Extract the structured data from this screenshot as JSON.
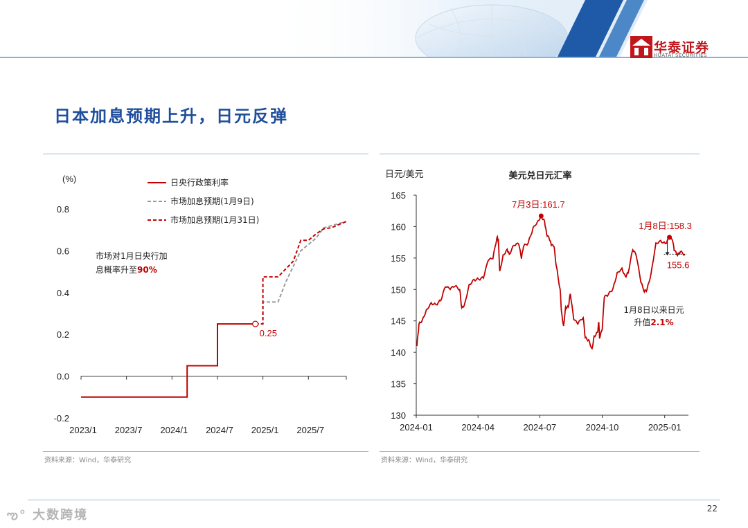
{
  "header": {
    "logo_text": "华泰证券",
    "logo_sub": "HUATAI SECURITIES",
    "colors": {
      "brand_red": "#c0171d",
      "title_blue": "#1f4e9c",
      "line_red": "#c00000",
      "line_gray": "#999999"
    }
  },
  "page": {
    "title": "日本加息预期上升，日元反弹",
    "page_number": "22",
    "watermark": "大数跨境"
  },
  "left": {
    "source": "资料来源：Wind，华泰研究",
    "annotation_text": "市场对1月日央行加息概率升至",
    "annotation_line1": "市场对1月日央行加",
    "annotation_line2": "息概率升至",
    "annotation_value": "90%",
    "end_point_label": "0.25"
  },
  "right": {
    "source": "资料来源：Wind，华泰研究",
    "annotation_text": "1月8日以来日元升值",
    "annotation_line1": "1月8日以来日元",
    "annotation_line2": "升值",
    "annotation_value": "2.1%",
    "peak1_label": "7月3日:161.7",
    "peak2_label": "1月8日:158.3",
    "last_label": "155.6"
  },
  "chart_data": [
    {
      "type": "line",
      "title": "",
      "ylabel": "(%)",
      "ylim": [
        -0.2,
        0.8
      ],
      "yticks": [
        -0.2,
        0.0,
        0.2,
        0.4,
        0.6,
        0.8
      ],
      "xtick_labels": [
        "2023/1",
        "2023/7",
        "2024/1",
        "2024/7",
        "2025/1",
        "2025/7"
      ],
      "xlim": [
        "2023-01",
        "2025-12"
      ],
      "legend_position": "top-center",
      "series": [
        {
          "name": "日央行政策利率",
          "style": "solid",
          "color": "#c00000",
          "points": [
            [
              "2023-01",
              -0.1
            ],
            [
              "2024-03",
              -0.1
            ],
            [
              "2024-03",
              0.05
            ],
            [
              "2024-07",
              0.05
            ],
            [
              "2024-07",
              0.25
            ],
            [
              "2024-12",
              0.25
            ]
          ]
        },
        {
          "name": "市场加息预期(1月9日)",
          "style": "dashed",
          "color": "#999999",
          "points": [
            [
              "2024-12",
              0.25
            ],
            [
              "2025-01",
              0.25
            ],
            [
              "2025-01",
              0.355
            ],
            [
              "2025-03",
              0.355
            ],
            [
              "2025-04",
              0.45
            ],
            [
              "2025-06",
              0.6
            ],
            [
              "2025-08",
              0.66
            ],
            [
              "2025-09",
              0.71
            ],
            [
              "2025-10",
              0.72
            ],
            [
              "2025-11",
              0.73
            ],
            [
              "2025-12",
              0.74
            ]
          ]
        },
        {
          "name": "市场加息预期(1月31日)",
          "style": "dashed",
          "color": "#c00000",
          "points": [
            [
              "2024-12",
              0.25
            ],
            [
              "2025-01",
              0.25
            ],
            [
              "2025-01",
              0.475
            ],
            [
              "2025-03",
              0.475
            ],
            [
              "2025-05",
              0.55
            ],
            [
              "2025-06",
              0.65
            ],
            [
              "2025-07",
              0.65
            ],
            [
              "2025-08",
              0.68
            ],
            [
              "2025-09",
              0.705
            ],
            [
              "2025-10",
              0.71
            ],
            [
              "2025-11",
              0.725
            ],
            [
              "2025-12",
              0.74
            ]
          ]
        }
      ]
    },
    {
      "type": "line",
      "title": "美元兑日元汇率",
      "ylabel": "日元/美元",
      "ylim": [
        130,
        165
      ],
      "yticks": [
        130,
        135,
        140,
        145,
        150,
        155,
        160,
        165
      ],
      "xtick_labels": [
        "2024-01",
        "2024-04",
        "2024-07",
        "2024-10",
        "2025-01"
      ],
      "xlim": [
        "2024-01-01",
        "2025-02-05"
      ],
      "series": [
        {
          "name": "美元兑日元",
          "color": "#c00000",
          "points": [
            [
              "2024-01-02",
              141.0
            ],
            [
              "2024-01-05",
              144.5
            ],
            [
              "2024-01-10",
              145.2
            ],
            [
              "2024-01-16",
              146.8
            ],
            [
              "2024-01-23",
              147.9
            ],
            [
              "2024-01-30",
              147.6
            ],
            [
              "2024-02-06",
              148.2
            ],
            [
              "2024-02-13",
              150.4
            ],
            [
              "2024-02-20",
              150.0
            ],
            [
              "2024-02-27",
              150.5
            ],
            [
              "2024-03-05",
              150.0
            ],
            [
              "2024-03-08",
              147.1
            ],
            [
              "2024-03-12",
              147.6
            ],
            [
              "2024-03-19",
              150.8
            ],
            [
              "2024-03-26",
              151.6
            ],
            [
              "2024-04-02",
              151.6
            ],
            [
              "2024-04-09",
              151.8
            ],
            [
              "2024-04-16",
              154.6
            ],
            [
              "2024-04-23",
              154.9
            ],
            [
              "2024-04-29",
              158.3
            ],
            [
              "2024-05-01",
              157.8
            ],
            [
              "2024-05-03",
              152.9
            ],
            [
              "2024-05-08",
              155.5
            ],
            [
              "2024-05-14",
              156.4
            ],
            [
              "2024-05-17",
              155.6
            ],
            [
              "2024-05-24",
              157.0
            ],
            [
              "2024-05-31",
              157.2
            ],
            [
              "2024-06-04",
              154.9
            ],
            [
              "2024-06-07",
              156.8
            ],
            [
              "2024-06-14",
              157.4
            ],
            [
              "2024-06-21",
              159.8
            ],
            [
              "2024-06-28",
              160.9
            ],
            [
              "2024-07-03",
              161.7
            ],
            [
              "2024-07-08",
              160.9
            ],
            [
              "2024-07-11",
              158.8
            ],
            [
              "2024-07-15",
              158.0
            ],
            [
              "2024-07-18",
              157.0
            ],
            [
              "2024-07-22",
              156.8
            ],
            [
              "2024-07-25",
              153.9
            ],
            [
              "2024-07-31",
              150.0
            ],
            [
              "2024-08-02",
              146.5
            ],
            [
              "2024-08-05",
              144.2
            ],
            [
              "2024-08-08",
              147.2
            ],
            [
              "2024-08-12",
              147.2
            ],
            [
              "2024-08-15",
              149.3
            ],
            [
              "2024-08-20",
              145.2
            ],
            [
              "2024-08-26",
              144.5
            ],
            [
              "2024-09-03",
              145.5
            ],
            [
              "2024-09-06",
              142.3
            ],
            [
              "2024-09-11",
              142.0
            ],
            [
              "2024-09-16",
              140.6
            ],
            [
              "2024-09-19",
              142.6
            ],
            [
              "2024-09-24",
              143.2
            ],
            [
              "2024-09-26",
              144.8
            ],
            [
              "2024-09-27",
              142.2
            ],
            [
              "2024-10-01",
              143.6
            ],
            [
              "2024-10-04",
              148.7
            ],
            [
              "2024-10-10",
              149.2
            ],
            [
              "2024-10-17",
              150.2
            ],
            [
              "2024-10-23",
              152.7
            ],
            [
              "2024-10-30",
              153.4
            ],
            [
              "2024-11-04",
              152.1
            ],
            [
              "2024-11-08",
              152.6
            ],
            [
              "2024-11-15",
              156.3
            ],
            [
              "2024-11-20",
              155.4
            ],
            [
              "2024-11-27",
              151.1
            ],
            [
              "2024-12-02",
              149.6
            ],
            [
              "2024-12-06",
              150.0
            ],
            [
              "2024-12-12",
              152.6
            ],
            [
              "2024-12-19",
              157.4
            ],
            [
              "2024-12-26",
              157.8
            ],
            [
              "2025-01-02",
              157.3
            ],
            [
              "2025-01-08",
              158.3
            ],
            [
              "2025-01-13",
              157.6
            ],
            [
              "2025-01-15",
              156.2
            ],
            [
              "2025-01-20",
              155.4
            ],
            [
              "2025-01-24",
              156.0
            ],
            [
              "2025-01-31",
              155.6
            ]
          ]
        }
      ]
    }
  ]
}
